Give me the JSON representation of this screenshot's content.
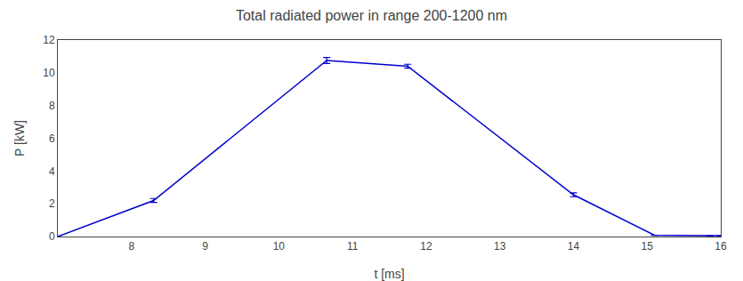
{
  "chart_data": {
    "type": "line",
    "title": "Total radiated power in range 200-1200 nm",
    "xlabel": "t [ms]",
    "ylabel": "P [kW]",
    "x": [
      7.0,
      8.3,
      10.65,
      11.75,
      14.0,
      15.1,
      15.85,
      16.0
    ],
    "values": [
      0.0,
      2.2,
      10.75,
      10.4,
      2.55,
      0.08,
      0.05,
      0.05
    ],
    "yerr": [
      0.0,
      0.12,
      0.18,
      0.12,
      0.12,
      0.0,
      0.0,
      0.0
    ],
    "color": "#0000cc",
    "xlim": [
      7.0,
      16.0
    ],
    "ylim": [
      0.0,
      12.0
    ],
    "xticks": [
      8,
      9,
      10,
      11,
      12,
      13,
      14,
      15,
      16
    ],
    "yticks": [
      0,
      2,
      4,
      6,
      8,
      10,
      12
    ],
    "grid": false
  }
}
